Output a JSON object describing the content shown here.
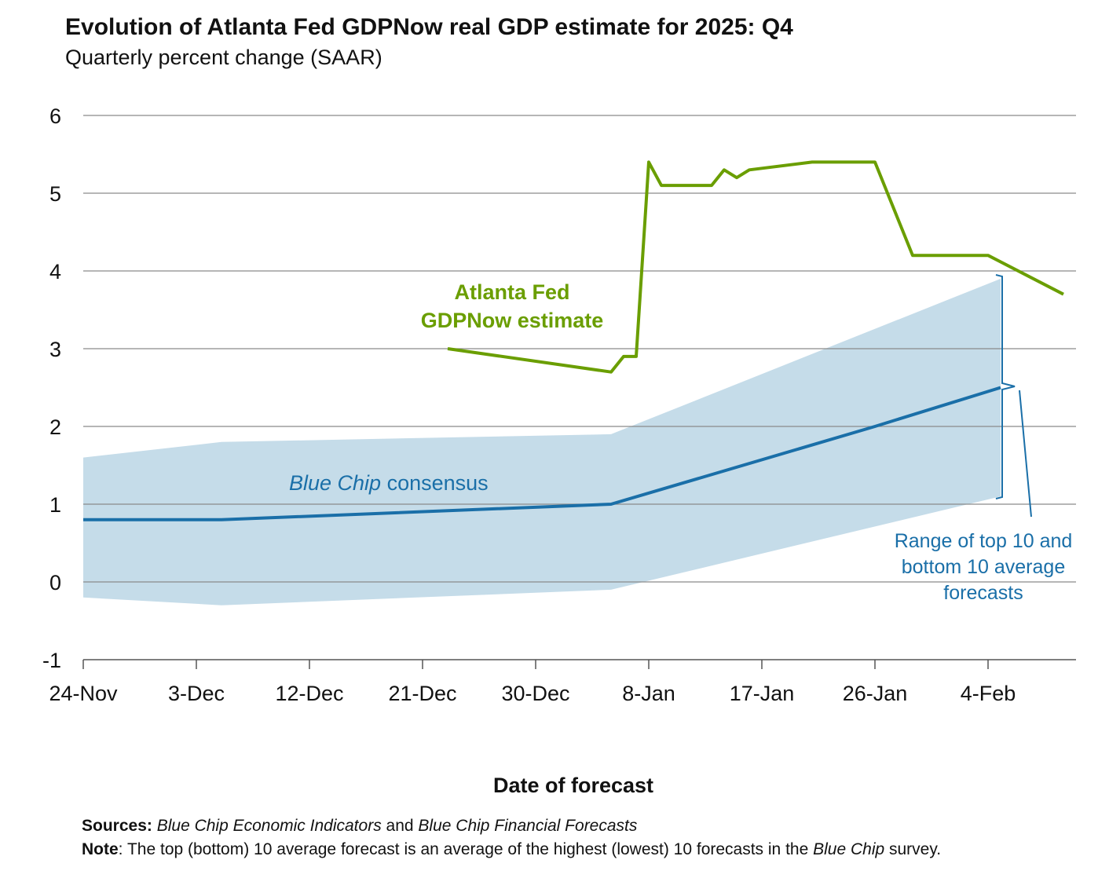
{
  "chart_data": {
    "type": "line",
    "title": "Evolution of Atlanta Fed GDPNow real GDP estimate for 2025: Q4",
    "subtitle": "Quarterly percent change (SAAR)",
    "xlabel": "Date of forecast",
    "ylabel": "",
    "ylim": [
      -1,
      6
    ],
    "yticks": [
      "6",
      "5",
      "4",
      "3",
      "2",
      "1",
      "0",
      "-1"
    ],
    "xticks": [
      "24-Nov",
      "3-Dec",
      "12-Dec",
      "21-Dec",
      "30-Dec",
      "8-Jan",
      "17-Jan",
      "26-Jan",
      "4-Feb"
    ],
    "grid": true,
    "series": [
      {
        "name": "Atlanta Fed GDPNow estimate",
        "color": "#6a9e00",
        "x": [
          "2025-12-23",
          "2026-01-05",
          "2026-01-06",
          "2026-01-07",
          "2026-01-08",
          "2026-01-09",
          "2026-01-13",
          "2026-01-14",
          "2026-01-15",
          "2026-01-16",
          "2026-01-21",
          "2026-01-26",
          "2026-01-29",
          "2026-02-04",
          "2026-02-10"
        ],
        "values": [
          3.0,
          2.7,
          2.9,
          2.9,
          5.4,
          5.1,
          5.1,
          5.3,
          5.2,
          5.3,
          5.4,
          5.4,
          4.2,
          4.2,
          3.7
        ]
      },
      {
        "name": "Blue Chip consensus",
        "color": "#1a6fa8",
        "x": [
          "2025-11-24",
          "2025-12-05",
          "2026-01-05",
          "2026-01-26",
          "2026-02-05"
        ],
        "values": [
          0.8,
          0.8,
          1.0,
          2.0,
          2.5
        ]
      },
      {
        "name": "Range of top 10 and bottom 10 average forecasts",
        "color": "#c5dce9",
        "x": [
          "2025-11-24",
          "2025-12-05",
          "2026-01-05",
          "2026-02-05"
        ],
        "upper": [
          1.6,
          1.8,
          1.9,
          3.9
        ],
        "lower": [
          -0.2,
          -0.3,
          -0.1,
          1.1
        ]
      }
    ],
    "annotations": {
      "gdpnow": [
        "Atlanta Fed",
        "GDPNow estimate"
      ],
      "consensus_italic": "Blue Chip",
      "consensus_rest": " consensus",
      "range": [
        "Range of top 10 and",
        "bottom 10 average",
        "forecasts"
      ]
    }
  },
  "footer": {
    "sources_label": "Sources:",
    "sources_a": "Blue Chip Economic Indicators",
    "sources_and": " and ",
    "sources_b": "Blue Chip Financial Forecasts",
    "note_label": "Note",
    "note_text": ": The top (bottom) 10 average forecast is an average of the highest (lowest) 10 forecasts in the ",
    "note_italic": "Blue Chip",
    "note_end": " survey."
  }
}
